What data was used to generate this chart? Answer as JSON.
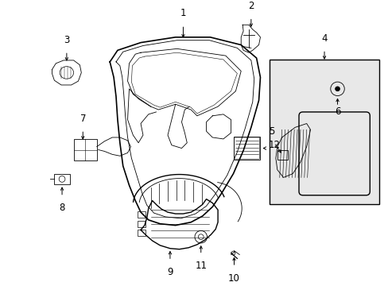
{
  "bg_color": "#ffffff",
  "line_color": "#000000",
  "inset_bg": "#e8e8e8",
  "lw_main": 1.0,
  "lw_thin": 0.6,
  "fs_num": 8.5
}
